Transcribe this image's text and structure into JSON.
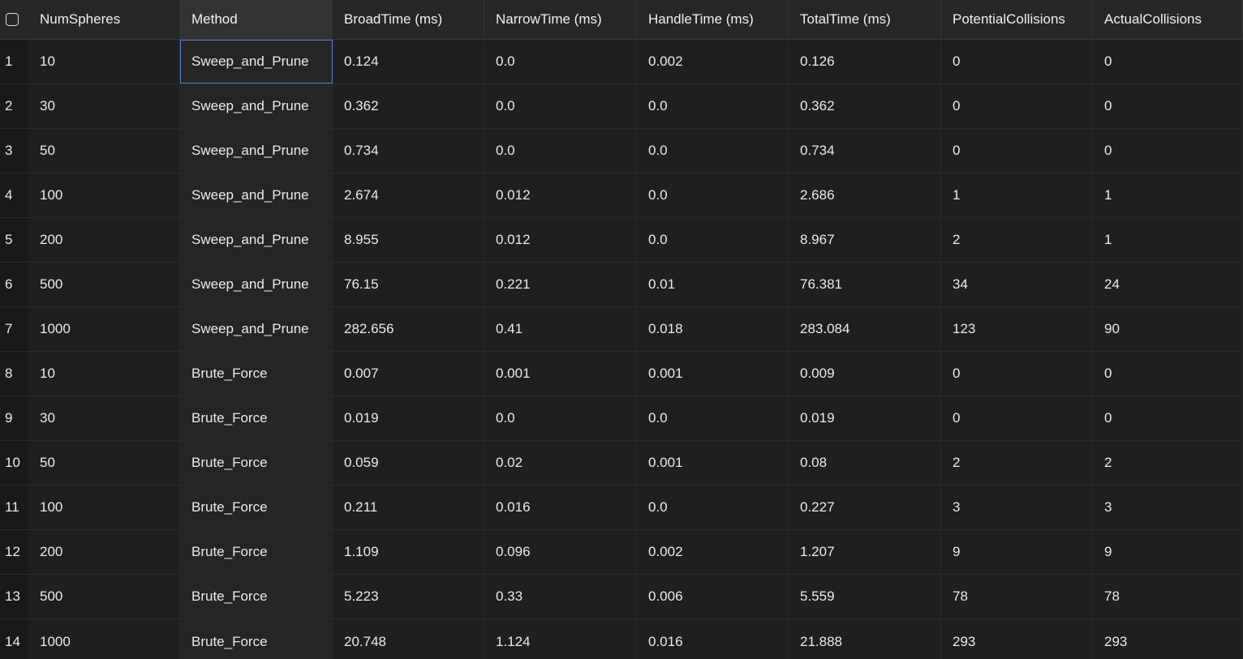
{
  "header": {
    "columns": [
      "NumSpheres",
      "Method",
      "BroadTime (ms)",
      "NarrowTime (ms)",
      "HandleTime (ms)",
      "TotalTime (ms)",
      "PotentialCollisions",
      "ActualCollisions"
    ]
  },
  "rows": [
    {
      "idx": "1",
      "cells": [
        "10",
        "Sweep_and_Prune",
        "0.124",
        "0.0",
        "0.002",
        "0.126",
        "0",
        "0"
      ]
    },
    {
      "idx": "2",
      "cells": [
        "30",
        "Sweep_and_Prune",
        "0.362",
        "0.0",
        "0.0",
        "0.362",
        "0",
        "0"
      ]
    },
    {
      "idx": "3",
      "cells": [
        "50",
        "Sweep_and_Prune",
        "0.734",
        "0.0",
        "0.0",
        "0.734",
        "0",
        "0"
      ]
    },
    {
      "idx": "4",
      "cells": [
        "100",
        "Sweep_and_Prune",
        "2.674",
        "0.012",
        "0.0",
        "2.686",
        "1",
        "1"
      ]
    },
    {
      "idx": "5",
      "cells": [
        "200",
        "Sweep_and_Prune",
        "8.955",
        "0.012",
        "0.0",
        "8.967",
        "2",
        "1"
      ]
    },
    {
      "idx": "6",
      "cells": [
        "500",
        "Sweep_and_Prune",
        "76.15",
        "0.221",
        "0.01",
        "76.381",
        "34",
        "24"
      ]
    },
    {
      "idx": "7",
      "cells": [
        "1000",
        "Sweep_and_Prune",
        "282.656",
        "0.41",
        "0.018",
        "283.084",
        "123",
        "90"
      ]
    },
    {
      "idx": "8",
      "cells": [
        "10",
        "Brute_Force",
        "0.007",
        "0.001",
        "0.001",
        "0.009",
        "0",
        "0"
      ]
    },
    {
      "idx": "9",
      "cells": [
        "30",
        "Brute_Force",
        "0.019",
        "0.0",
        "0.0",
        "0.019",
        "0",
        "0"
      ]
    },
    {
      "idx": "10",
      "cells": [
        "50",
        "Brute_Force",
        "0.059",
        "0.02",
        "0.001",
        "0.08",
        "2",
        "2"
      ]
    },
    {
      "idx": "11",
      "cells": [
        "100",
        "Brute_Force",
        "0.211",
        "0.016",
        "0.0",
        "0.227",
        "3",
        "3"
      ]
    },
    {
      "idx": "12",
      "cells": [
        "200",
        "Brute_Force",
        "1.109",
        "0.096",
        "0.002",
        "1.207",
        "9",
        "9"
      ]
    },
    {
      "idx": "13",
      "cells": [
        "500",
        "Brute_Force",
        "5.223",
        "0.33",
        "0.006",
        "5.559",
        "78",
        "78"
      ]
    },
    {
      "idx": "14",
      "cells": [
        "1000",
        "Brute_Force",
        "20.748",
        "1.124",
        "0.016",
        "21.888",
        "293",
        "293"
      ]
    }
  ],
  "icons": {
    "select_all": "checkbox-icon"
  },
  "colors": {
    "background": "#1f1f1f",
    "selection_outline": "#5b7fd6"
  }
}
